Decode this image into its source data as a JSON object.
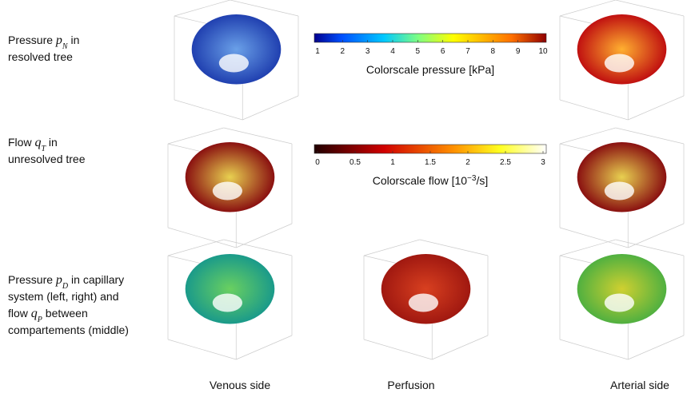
{
  "row_labels": [
    {
      "lines": [
        [
          {
            "text": "Pressure ",
            "style": "normal"
          },
          {
            "text": "p",
            "style": "math"
          },
          {
            "text": "N",
            "style": "sub"
          },
          {
            "text": " in",
            "style": "normal"
          }
        ],
        [
          {
            "text": "resolved tree",
            "style": "normal"
          }
        ]
      ]
    },
    {
      "lines": [
        [
          {
            "text": "Flow ",
            "style": "normal"
          },
          {
            "text": "q",
            "style": "math"
          },
          {
            "text": "T",
            "style": "sub"
          },
          {
            "text": " in",
            "style": "normal"
          }
        ],
        [
          {
            "text": "unresolved tree",
            "style": "normal"
          }
        ]
      ]
    },
    {
      "lines": [
        [
          {
            "text": "Pressure ",
            "style": "normal"
          },
          {
            "text": "p",
            "style": "math"
          },
          {
            "text": "D",
            "style": "sub"
          },
          {
            "text": " in capillary",
            "style": "normal"
          }
        ],
        [
          {
            "text": "system (left, right) and",
            "style": "normal"
          }
        ],
        [
          {
            "text": "flow ",
            "style": "normal"
          },
          {
            "text": "q",
            "style": "math"
          },
          {
            "text": "P",
            "style": "sub"
          },
          {
            "text": " between",
            "style": "normal"
          }
        ],
        [
          {
            "text": "compartements (middle)",
            "style": "normal"
          }
        ]
      ]
    }
  ],
  "colorbars": [
    {
      "colormap": "jet",
      "lim": [
        1,
        10
      ],
      "ticks": [
        1,
        2,
        3,
        4,
        5,
        6,
        7,
        8,
        9,
        10
      ],
      "label": [
        {
          "text": "Colorscale pressure [kPa]",
          "style": "normal"
        }
      ]
    },
    {
      "colormap": "hot",
      "lim": [
        0,
        3
      ],
      "ticks": [
        0,
        0.5,
        1,
        1.5,
        2,
        2.5,
        3
      ],
      "label": [
        {
          "text": "Colorscale flow [10",
          "style": "normal"
        },
        {
          "text": "−3",
          "style": "sup"
        },
        {
          "text": "/s]",
          "style": "normal"
        }
      ]
    }
  ],
  "columns": [
    "Venous side",
    "Perfusion",
    "Arterial side"
  ]
}
